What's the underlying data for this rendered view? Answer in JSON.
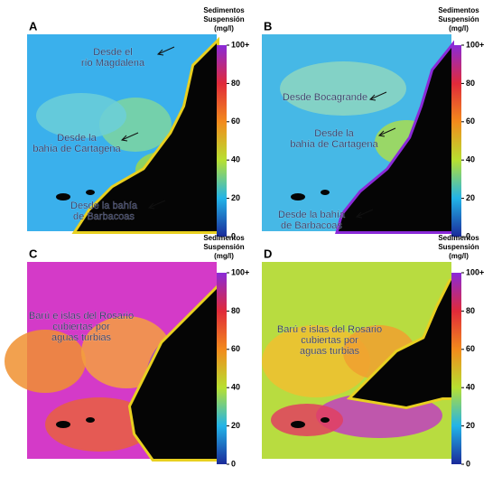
{
  "panels": [
    {
      "label": "A",
      "colorbar": {
        "title": [
          "Sedimentos",
          "Suspensión",
          "(mg/l)"
        ],
        "ticks": [
          0,
          20,
          40,
          60,
          80,
          {
            "value": 100,
            "label": "100+"
          }
        ]
      },
      "annotations": [
        {
          "lines": [
            "Desde el",
            "río Magdalena"
          ]
        },
        {
          "lines": [
            "Desde la",
            "bahía de Cartagena"
          ]
        },
        {
          "lines": [
            "Desde la bahía",
            "de Barbacoas"
          ]
        }
      ]
    },
    {
      "label": "B",
      "colorbar": {
        "title": [
          "Sedimentos",
          "Suspensión",
          "(mg/l)"
        ],
        "ticks": [
          0,
          20,
          40,
          60,
          80,
          {
            "value": 100,
            "label": "100+"
          }
        ]
      },
      "annotations": [
        {
          "lines": [
            "Desde Bocagrande"
          ]
        },
        {
          "lines": [
            "Desde la",
            "bahía de Cartagena"
          ]
        },
        {
          "lines": [
            "Desde la bahía",
            "de Barbacoas"
          ]
        }
      ]
    },
    {
      "label": "C",
      "colorbar": {
        "title": [
          "Sedimentos",
          "Suspensión",
          "(mg/l)"
        ],
        "ticks": [
          0,
          20,
          40,
          60,
          80,
          {
            "value": 100,
            "label": "100+"
          }
        ]
      },
      "annotations": [
        {
          "lines": [
            "Barú e islas del Rosario",
            "cubiertas por",
            "aguas turbias"
          ]
        }
      ]
    },
    {
      "label": "D",
      "colorbar": {
        "title": [
          "Sedimentos",
          "Suspensión",
          "(mg/l)"
        ],
        "ticks": [
          0,
          20,
          40,
          60,
          80,
          {
            "value": 100,
            "label": "100+"
          }
        ]
      },
      "annotations": [
        {
          "lines": [
            "Barú e islas del Rosario",
            "cubiertas por",
            "aguas turbias"
          ]
        }
      ]
    }
  ]
}
